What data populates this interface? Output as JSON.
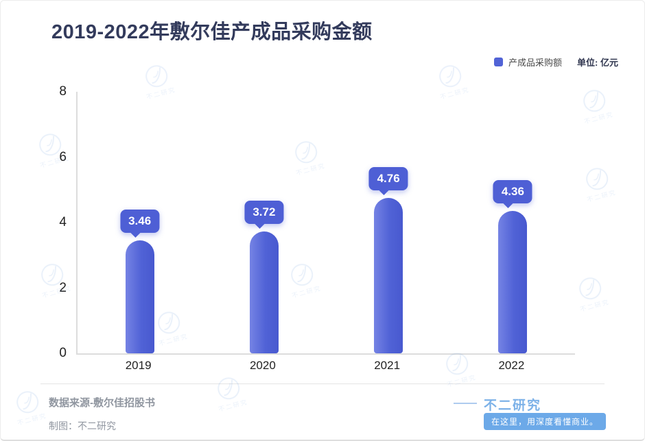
{
  "title": "2019-2022年敷尔佳产成品采购金额",
  "legend": {
    "label": "产成品采购额",
    "unit": "单位: 亿元"
  },
  "chart_data": {
    "type": "bar",
    "title": "2019-2022年敷尔佳产成品采购金额",
    "categories": [
      "2019",
      "2020",
      "2021",
      "2022"
    ],
    "values": [
      3.46,
      3.72,
      4.76,
      4.36
    ],
    "data_labels": [
      "3.46",
      "3.72",
      "4.76",
      "4.36"
    ],
    "series_name": "产成品采购额",
    "unit": "亿元",
    "xlabel": "",
    "ylabel": "",
    "ylim": [
      0,
      8
    ],
    "yticks": [
      0,
      2,
      4,
      6,
      8
    ],
    "grid": false,
    "legend_position": "top-right"
  },
  "footer": {
    "source": "数据来源-敷尔佳招股书",
    "credit": "制图：不二研究",
    "brand": "不二研究",
    "slogan": "在这里，用深度看懂商业。"
  },
  "watermark": {
    "text": "不二研究"
  },
  "colors": {
    "bar": "#5163d6",
    "callout": "#4e5fd5",
    "title": "#333b5c",
    "brand_blue": "#7db2e8",
    "slogan_bg": "#6ca9e8"
  }
}
